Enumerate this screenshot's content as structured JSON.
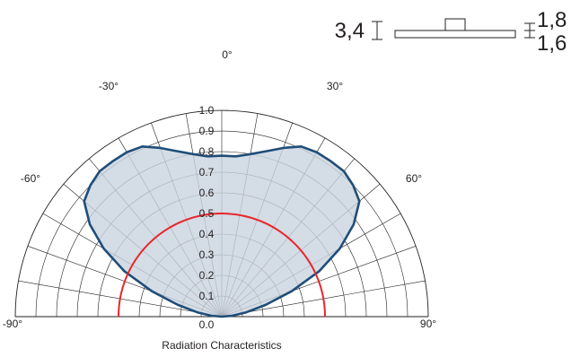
{
  "chart_data": {
    "type": "polar",
    "xlabel": "Radiation Characteristics",
    "radial_range": [
      0,
      1.0
    ],
    "radial_ticks": [
      "0.0",
      "0.1",
      "0.2",
      "0.3",
      "0.4",
      "0.5",
      "0.6",
      "0.7",
      "0.8",
      "0.9",
      "1.0"
    ],
    "angle_ticks": [
      "-90°",
      "-60°",
      "-30°",
      "0°",
      "30°",
      "60°",
      "90°"
    ],
    "grid": true,
    "series": [
      {
        "color": "#1f4e79",
        "fill": "#c9d3df",
        "angles": [
          -90,
          -85,
          -80,
          -75,
          -70,
          -65,
          -60,
          -55,
          -50,
          -45,
          -40,
          -35,
          -30,
          -25,
          -20,
          -15,
          -10,
          -5,
          0,
          5,
          10,
          15,
          20,
          25,
          30,
          35,
          40,
          45,
          50,
          55,
          60,
          65,
          70,
          75,
          80,
          85,
          90
        ],
        "values": [
          0.0,
          0.05,
          0.12,
          0.22,
          0.36,
          0.52,
          0.66,
          0.78,
          0.87,
          0.9,
          0.92,
          0.92,
          0.92,
          0.91,
          0.87,
          0.83,
          0.8,
          0.78,
          0.78,
          0.78,
          0.8,
          0.83,
          0.87,
          0.91,
          0.92,
          0.92,
          0.92,
          0.9,
          0.87,
          0.78,
          0.66,
          0.52,
          0.36,
          0.22,
          0.12,
          0.05,
          0.0
        ]
      },
      {
        "color": "#e8262b",
        "reference_value": 0.5
      }
    ]
  },
  "dimensions": {
    "height_label": "3,4",
    "top_label": "1,8",
    "bottom_label": "1,6"
  }
}
